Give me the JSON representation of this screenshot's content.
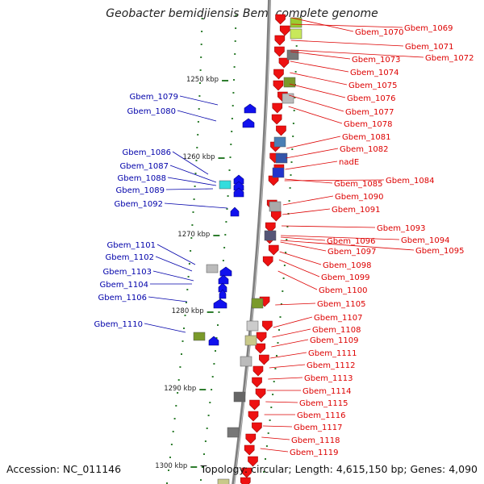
{
  "title": "Geobacter bemidjiensis Bem, complete genome",
  "accession": "Accession: NC_011146",
  "topology": "Topology: circular; Length: 4,615,150 bp; Genes: 4,090",
  "colors": {
    "backbone": "#7f7f7f",
    "forward_labels": "#dd0000",
    "reverse_labels": "#0000aa",
    "tick_marks": "#2e7d2e"
  },
  "scale_ticks": [
    "1250 kbp",
    "1260 kbp",
    "1270 kbp",
    "1280 kbp",
    "1290 kbp",
    "1300 kbp"
  ],
  "forward_genes": [
    "Gbem_1070",
    "Gbem_1069",
    "Gbem_1071",
    "Gbem_1072",
    "Gbem_1073",
    "Gbem_1074",
    "Gbem_1075",
    "Gbem_1076",
    "Gbem_1077",
    "Gbem_1078",
    "Gbem_1081",
    "Gbem_1082",
    "nadE",
    "Gbem_1085",
    "Gbem_1084",
    "Gbem_1090",
    "Gbem_1091",
    "Gbem_1093",
    "Gbem_1094",
    "Gbem_1096",
    "Gbem_1095",
    "Gbem_1097",
    "Gbem_1098",
    "Gbem_1099",
    "Gbem_1100",
    "Gbem_1105",
    "Gbem_1107",
    "Gbem_1108",
    "Gbem_1109",
    "Gbem_1111",
    "Gbem_1112",
    "Gbem_1113",
    "Gbem_1114",
    "Gbem_1115",
    "Gbem_1116",
    "Gbem_1117",
    "Gbem_1118",
    "Gbem_1119"
  ],
  "reverse_genes": [
    "Gbem_1079",
    "Gbem_1080",
    "Gbem_1086",
    "Gbem_1087",
    "Gbem_1088",
    "Gbem_1089",
    "Gbem_1092",
    "Gbem_1101",
    "Gbem_1102",
    "Gbem_1103",
    "Gbem_1104",
    "Gbem_1106",
    "Gbem_1110"
  ]
}
